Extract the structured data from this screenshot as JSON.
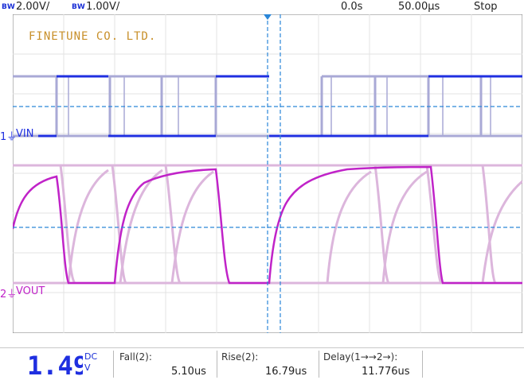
{
  "topbar": {
    "ch1_bw": "BW",
    "ch1_scale": "2.00V/",
    "ch2_bw": "BW",
    "ch2_scale": "1.00V/",
    "delay": "0.0s",
    "timebase": "50.00µs",
    "mode": "Stop"
  },
  "brand": "FINETUNE CO. LTD.",
  "channels": {
    "ch1": {
      "number": "1",
      "name": "VIN",
      "color": "#1f2fe0"
    },
    "ch2": {
      "number": "2",
      "name": "VOUT",
      "color": "#c023c8"
    }
  },
  "readout": {
    "value": "1.49",
    "coupling": "DC",
    "unit": "V"
  },
  "measurements": [
    {
      "label": "Fall(2):",
      "value": "5.10us"
    },
    {
      "label": "Rise(2):",
      "value": "16.79us"
    },
    {
      "label": "Delay(1→→2→):",
      "value": "11.776us"
    }
  ],
  "colors": {
    "ch1_trace": "#1f2fe0",
    "ch1_persist": "#a9a9d6",
    "ch2_trace": "#c023c8",
    "ch2_persist": "#dcb6dc",
    "cursor": "#2a86d8",
    "brand": "#c8902a"
  }
}
